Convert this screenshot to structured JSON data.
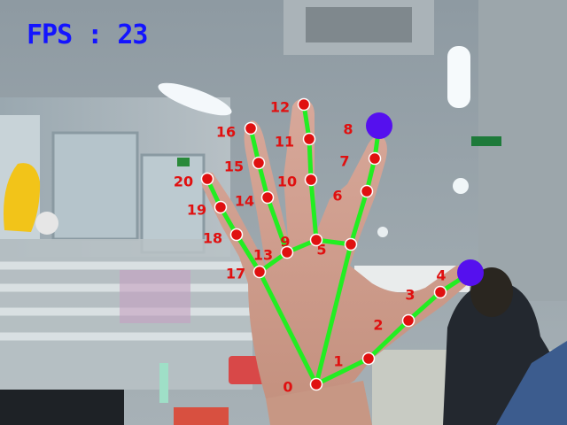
{
  "overlay": {
    "fps_label": "FPS : 23",
    "fps_color": "#1414ff"
  },
  "hand": {
    "skeleton_color": "#22ee22",
    "keypoint_color": "#e01010",
    "fingertip_highlight_color": "#5510ee",
    "label_color": "#e01010",
    "highlighted_keypoints": [
      4,
      8
    ],
    "connections": [
      [
        0,
        1
      ],
      [
        1,
        2
      ],
      [
        2,
        3
      ],
      [
        3,
        4
      ],
      [
        0,
        5
      ],
      [
        5,
        6
      ],
      [
        6,
        7
      ],
      [
        7,
        8
      ],
      [
        5,
        9
      ],
      [
        9,
        10
      ],
      [
        10,
        11
      ],
      [
        11,
        12
      ],
      [
        9,
        13
      ],
      [
        13,
        14
      ],
      [
        14,
        15
      ],
      [
        15,
        16
      ],
      [
        13,
        17
      ],
      [
        17,
        18
      ],
      [
        18,
        19
      ],
      [
        19,
        20
      ],
      [
        0,
        17
      ]
    ],
    "keypoint_labels": [
      "0",
      "1",
      "2",
      "3",
      "4",
      "5",
      "6",
      "7",
      "8",
      "9",
      "10",
      "11",
      "12",
      "13",
      "14",
      "15",
      "16",
      "17",
      "18",
      "19",
      "20"
    ]
  }
}
